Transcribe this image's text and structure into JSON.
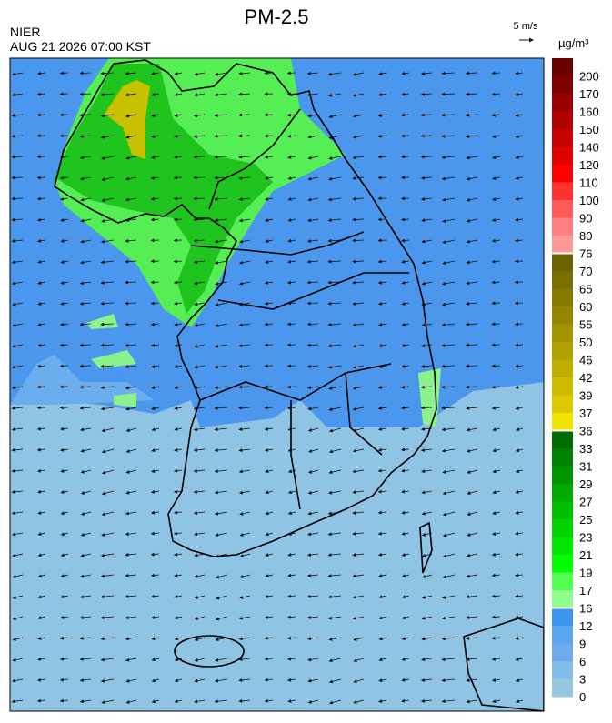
{
  "header": {
    "title": "PM-2.5",
    "agency": "NIER",
    "timestamp": "AUG 21 2026 07:00 KST",
    "wind_scale": "5 m/s",
    "unit": "µg/m³"
  },
  "colorbar": {
    "labels": [
      200,
      170,
      160,
      150,
      140,
      120,
      110,
      100,
      90,
      80,
      76,
      70,
      65,
      60,
      55,
      50,
      46,
      42,
      39,
      37,
      36,
      33,
      31,
      29,
      27,
      25,
      23,
      21,
      19,
      17,
      16,
      12,
      9,
      6,
      3,
      0
    ],
    "colors": [
      "#6b0000",
      "#800000",
      "#9a0000",
      "#b00000",
      "#c80000",
      "#e00000",
      "#ff0000",
      "#ff3030",
      "#ff5a5a",
      "#ff8080",
      "#ff9999",
      "#6b6100",
      "#7a6e00",
      "#887a00",
      "#958600",
      "#a39300",
      "#b0a000",
      "#bfae00",
      "#ccba00",
      "#dcc900",
      "#f0e400",
      "#006b00",
      "#008000",
      "#009500",
      "#00aa00",
      "#00bf00",
      "#00d400",
      "#00e600",
      "#00ff00",
      "#50ff50",
      "#90ff90",
      "#3c96f0",
      "#5aa5f0",
      "#6eaaee",
      "#82bce8",
      "#98c8e0"
    ]
  }
}
